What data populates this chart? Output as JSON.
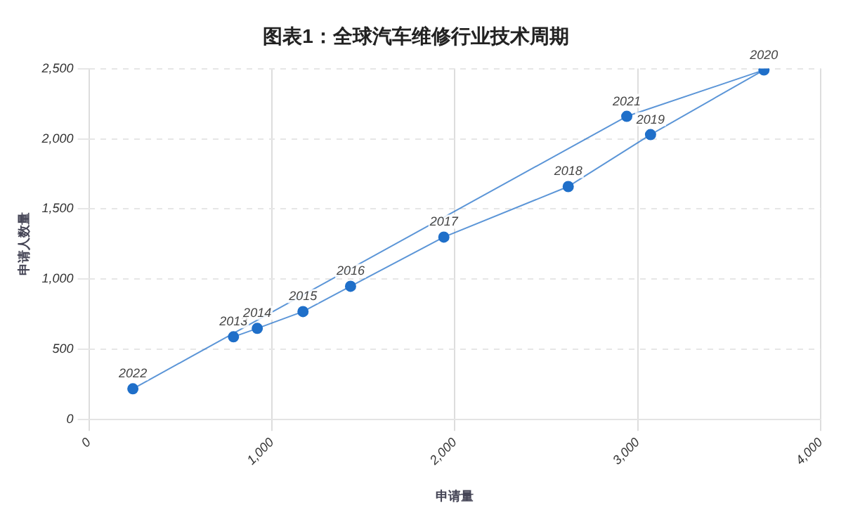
{
  "chart_data": {
    "type": "line",
    "title": "图表1：全球汽车维修行业技术周期",
    "xlabel": "申请量",
    "ylabel": "申请人数量",
    "xlim": [
      0,
      4000
    ],
    "xticks": [
      {
        "value": 0,
        "label": "0"
      },
      {
        "value": 1000,
        "label": "1,000"
      },
      {
        "value": 2000,
        "label": "2,000"
      },
      {
        "value": 3000,
        "label": "3,000"
      },
      {
        "value": 4000,
        "label": "4,000"
      }
    ],
    "ylim": [
      0,
      2500
    ],
    "yticks": [
      {
        "value": 0,
        "label": "0"
      },
      {
        "value": 500,
        "label": "500"
      },
      {
        "value": 1000,
        "label": "1,000"
      },
      {
        "value": 1500,
        "label": "1,500"
      },
      {
        "value": 2000,
        "label": "2,000"
      },
      {
        "value": 2500,
        "label": "2,500"
      }
    ],
    "grid": true,
    "marker": "circle",
    "line_style": "solid",
    "series": [
      {
        "color": "#1f6fc9",
        "x": [
          790,
          920,
          1170,
          1430,
          1940,
          2620,
          3070,
          3690,
          2940,
          240
        ],
        "values": [
          590,
          650,
          770,
          950,
          1300,
          1660,
          2030,
          2490,
          2160,
          220
        ]
      }
    ],
    "annotations": [
      {
        "text": "2013",
        "x": 790,
        "y": 590
      },
      {
        "text": "2014",
        "x": 920,
        "y": 650
      },
      {
        "text": "2015",
        "x": 1170,
        "y": 770
      },
      {
        "text": "2016",
        "x": 1430,
        "y": 950
      },
      {
        "text": "2017",
        "x": 1940,
        "y": 1300
      },
      {
        "text": "2018",
        "x": 2620,
        "y": 1660
      },
      {
        "text": "2019",
        "x": 3070,
        "y": 2030
      },
      {
        "text": "2020",
        "x": 3690,
        "y": 2490
      },
      {
        "text": "2021",
        "x": 2940,
        "y": 2160
      },
      {
        "text": "2022",
        "x": 240,
        "y": 220
      }
    ]
  }
}
